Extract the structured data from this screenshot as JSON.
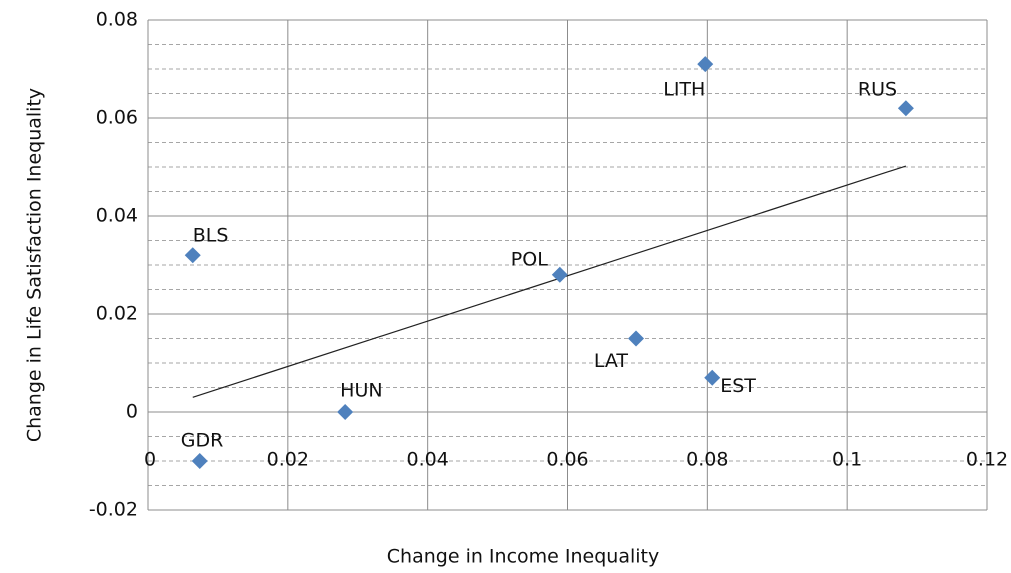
{
  "chart_data": {
    "type": "scatter",
    "x_label": "Change in Income Inequality",
    "y_label": "Change in Life Satisfaction Inequality",
    "labels": [
      "BLS",
      "GDR",
      "HUN",
      "POL",
      "LAT",
      "LITH",
      "EST",
      "RUS"
    ],
    "x": [
      0.0064,
      0.0074,
      0.0282,
      0.0589,
      0.0698,
      0.0797,
      0.0807,
      0.1084
    ],
    "y": [
      0.032,
      -0.01,
      0,
      0.028,
      0.015,
      0.071,
      0.007,
      0.062
    ],
    "color": "#4f81bd",
    "trendline": {
      "x": [
        0.0064,
        0.1084
      ],
      "y": [
        0.003,
        0.0502
      ]
    },
    "xlim": [
      0,
      0.12
    ],
    "ylim": [
      -0.02,
      0.08
    ],
    "xticks": [
      0,
      0.02,
      0.04,
      0.06,
      0.08,
      0.1,
      0.12
    ],
    "yticks": [
      -0.02,
      0,
      0.02,
      0.04,
      0.06,
      0.08
    ],
    "grid": true
  }
}
